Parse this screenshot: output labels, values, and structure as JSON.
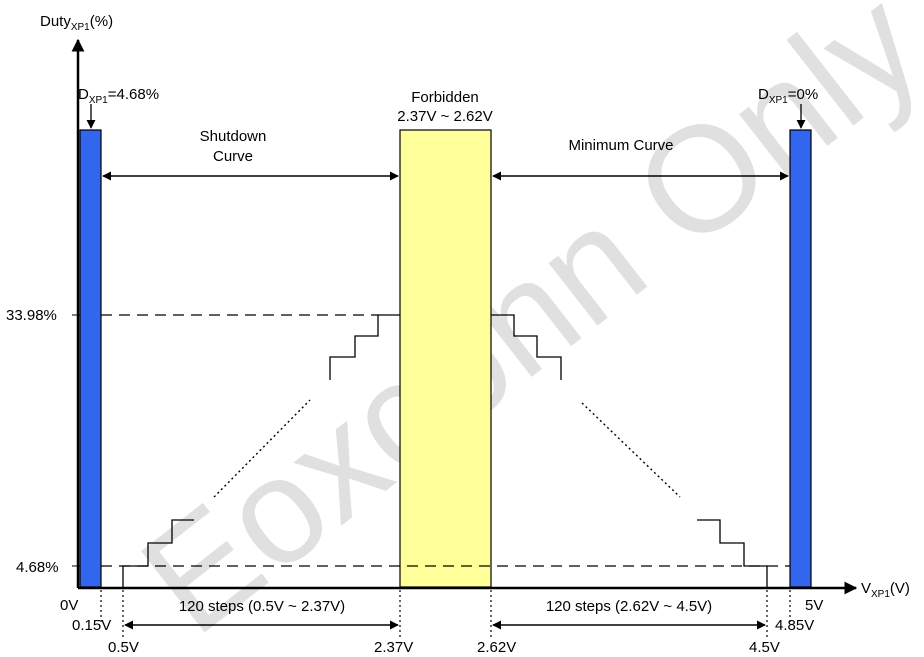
{
  "watermark": "Eoxconn Only",
  "axes": {
    "y_label_main": "Duty",
    "y_label_sub": "XP1",
    "y_label_unit": "(%)",
    "x_label_main": "V",
    "x_label_sub": "XP1",
    "x_label_unit": "(V)"
  },
  "y_ticks": {
    "top": "33.98%",
    "bottom": "4.68%"
  },
  "x_ticks": {
    "v0": "0V",
    "v015": "0.15V",
    "v05": "0.5V",
    "v237": "2.37V",
    "v262": "2.62V",
    "v45": "4.5V",
    "v485": "4.85V",
    "v5": "5V"
  },
  "left_bar": {
    "label_main": "D",
    "label_sub": "XP1",
    "label_value": "=4.68%",
    "color": "#3366ee"
  },
  "right_bar": {
    "label_main": "D",
    "label_sub": "XP1",
    "label_value": "=0%",
    "color": "#3366ee"
  },
  "forbidden": {
    "title": "Forbidden",
    "range": "2.37V ~ 2.62V",
    "color": "#ffff99"
  },
  "curves": {
    "shutdown_line1": "Shutdown",
    "shutdown_line2": "Curve",
    "minimum": "Minimum Curve"
  },
  "steps": {
    "left": "120 steps (0.5V ~ 2.37V)",
    "right": "120 steps (2.62V ~ 4.5V)"
  }
}
